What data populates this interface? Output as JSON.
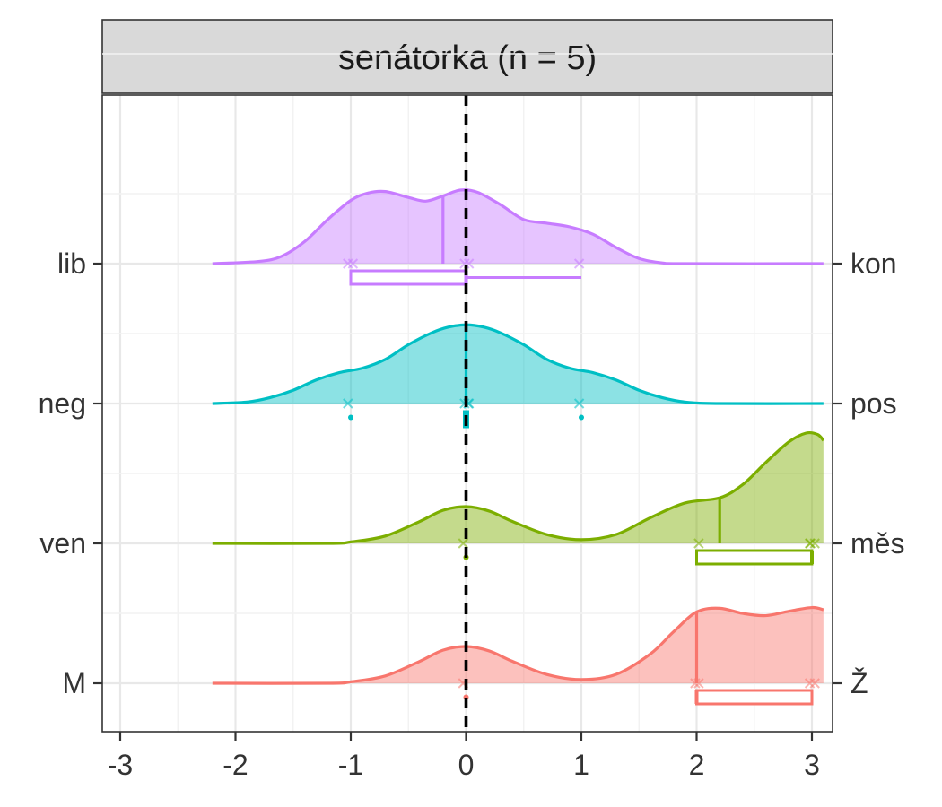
{
  "chart_data": {
    "type": "ridgeline",
    "facet_title": "senátorka (n = 5)",
    "x_ticks": [
      "-3",
      "-2",
      "-1",
      "0",
      "1",
      "2",
      "3"
    ],
    "xlim": [
      -3.1,
      3.1
    ],
    "reference_line_x": 0,
    "grid": true,
    "scales": [
      {
        "left_label": "lib",
        "right_label": "kon",
        "color": "#c77cff",
        "density": [
          [
            -2.2,
            0.0
          ],
          [
            -1.8,
            0.03
          ],
          [
            -1.6,
            0.1
          ],
          [
            -1.4,
            0.3
          ],
          [
            -1.2,
            0.6
          ],
          [
            -1.0,
            0.86
          ],
          [
            -0.85,
            0.96
          ],
          [
            -0.7,
            0.98
          ],
          [
            -0.5,
            0.9
          ],
          [
            -0.35,
            0.85
          ],
          [
            -0.2,
            0.92
          ],
          [
            -0.05,
            1.0
          ],
          [
            0.1,
            0.97
          ],
          [
            0.3,
            0.8
          ],
          [
            0.5,
            0.6
          ],
          [
            0.7,
            0.55
          ],
          [
            0.9,
            0.5
          ],
          [
            1.1,
            0.4
          ],
          [
            1.3,
            0.22
          ],
          [
            1.5,
            0.07
          ],
          [
            1.7,
            0.01
          ],
          [
            1.9,
            0.0
          ],
          [
            3.1,
            0.0
          ]
        ],
        "mean": -0.2,
        "responses": [
          -1,
          -1,
          0,
          0,
          1
        ],
        "box": {
          "q1": -1,
          "median": 0,
          "q3": 0,
          "min": -1,
          "max": 1
        }
      },
      {
        "left_label": "neg",
        "right_label": "pos",
        "color": "#00bfc4",
        "density": [
          [
            -2.2,
            0.0
          ],
          [
            -1.9,
            0.02
          ],
          [
            -1.7,
            0.08
          ],
          [
            -1.5,
            0.18
          ],
          [
            -1.3,
            0.32
          ],
          [
            -1.1,
            0.42
          ],
          [
            -0.9,
            0.48
          ],
          [
            -0.7,
            0.6
          ],
          [
            -0.5,
            0.8
          ],
          [
            -0.3,
            0.96
          ],
          [
            -0.15,
            1.04
          ],
          [
            0.0,
            1.07
          ],
          [
            0.15,
            1.04
          ],
          [
            0.3,
            0.96
          ],
          [
            0.5,
            0.8
          ],
          [
            0.7,
            0.6
          ],
          [
            0.9,
            0.48
          ],
          [
            1.1,
            0.42
          ],
          [
            1.3,
            0.32
          ],
          [
            1.5,
            0.18
          ],
          [
            1.7,
            0.08
          ],
          [
            1.9,
            0.02
          ],
          [
            2.2,
            0.0
          ],
          [
            3.1,
            0.0
          ]
        ],
        "mean": 0,
        "responses": [
          -1,
          0,
          0,
          0,
          1
        ],
        "outliers": [
          -1,
          1
        ],
        "box": {
          "q1": 0,
          "median": 0,
          "q3": 0,
          "min": 0,
          "max": 0
        }
      },
      {
        "left_label": "ven",
        "right_label": "měs",
        "color": "#7cae00",
        "density": [
          [
            -2.2,
            0.0
          ],
          [
            -1.2,
            0.0
          ],
          [
            -1.0,
            0.02
          ],
          [
            -0.7,
            0.1
          ],
          [
            -0.4,
            0.3
          ],
          [
            -0.2,
            0.45
          ],
          [
            0.0,
            0.5
          ],
          [
            0.2,
            0.44
          ],
          [
            0.4,
            0.3
          ],
          [
            0.7,
            0.12
          ],
          [
            1.0,
            0.05
          ],
          [
            1.3,
            0.12
          ],
          [
            1.6,
            0.35
          ],
          [
            1.9,
            0.55
          ],
          [
            2.2,
            0.62
          ],
          [
            2.4,
            0.8
          ],
          [
            2.6,
            1.1
          ],
          [
            2.8,
            1.38
          ],
          [
            2.95,
            1.5
          ],
          [
            3.05,
            1.48
          ],
          [
            3.1,
            1.4
          ]
        ],
        "mean": 2.2,
        "responses": [
          0,
          2,
          3,
          3,
          3
        ],
        "outliers": [
          0
        ],
        "box": {
          "q1": 2,
          "median": 3,
          "q3": 3,
          "min": 2,
          "max": 3
        }
      },
      {
        "left_label": "M",
        "right_label": "Ž",
        "color": "#f8766d",
        "density": [
          [
            -2.2,
            0.0
          ],
          [
            -1.2,
            0.0
          ],
          [
            -1.0,
            0.02
          ],
          [
            -0.7,
            0.1
          ],
          [
            -0.4,
            0.3
          ],
          [
            -0.2,
            0.45
          ],
          [
            0.0,
            0.5
          ],
          [
            0.2,
            0.44
          ],
          [
            0.4,
            0.3
          ],
          [
            0.7,
            0.12
          ],
          [
            1.0,
            0.05
          ],
          [
            1.3,
            0.12
          ],
          [
            1.6,
            0.4
          ],
          [
            1.8,
            0.7
          ],
          [
            2.0,
            0.97
          ],
          [
            2.2,
            1.02
          ],
          [
            2.4,
            0.95
          ],
          [
            2.6,
            0.92
          ],
          [
            2.8,
            0.98
          ],
          [
            3.0,
            1.03
          ],
          [
            3.1,
            1.0
          ]
        ],
        "mean": 2,
        "responses": [
          0,
          2,
          2,
          3,
          3
        ],
        "outliers": [
          0
        ],
        "box": {
          "q1": 2,
          "median": 2,
          "q3": 3,
          "min": 2,
          "max": 3
        }
      }
    ]
  }
}
